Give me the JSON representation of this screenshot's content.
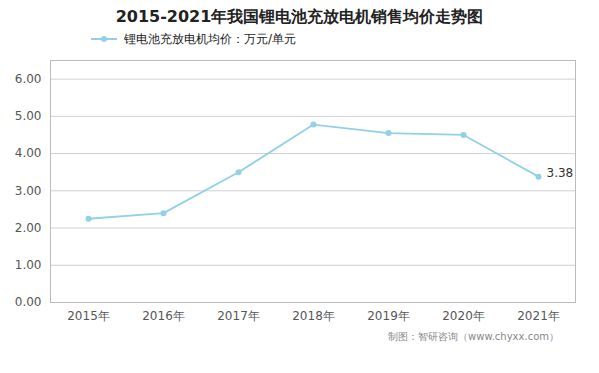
{
  "chart_data": {
    "type": "line",
    "title": "2015-2021年我国锂电池充放电机销售均价走势图",
    "categories": [
      "2015年",
      "2016年",
      "2017年",
      "2018年",
      "2019年",
      "2020年",
      "2021年"
    ],
    "series": [
      {
        "name": "锂电池充放电机均价：万元/单元",
        "color": "#92D0E8",
        "values": [
          2.25,
          2.4,
          3.5,
          4.78,
          4.55,
          4.5,
          3.38
        ]
      }
    ],
    "marker": "circle",
    "ylim": [
      0,
      6.5
    ],
    "yticks": [
      {
        "value": 0,
        "label": "0.00"
      },
      {
        "value": 1,
        "label": "1.00"
      },
      {
        "value": 2,
        "label": "2.00"
      },
      {
        "value": 3,
        "label": "3.00"
      },
      {
        "value": 4,
        "label": "4.00"
      },
      {
        "value": 5,
        "label": "5.00"
      },
      {
        "value": 6,
        "label": "6.00"
      }
    ],
    "grid": true,
    "legend": "top",
    "annotations": [
      {
        "text": "3.38",
        "x": "2021年",
        "y": 3.38
      }
    ],
    "caption": "制图：智研咨询（www.chyxx.com）"
  }
}
